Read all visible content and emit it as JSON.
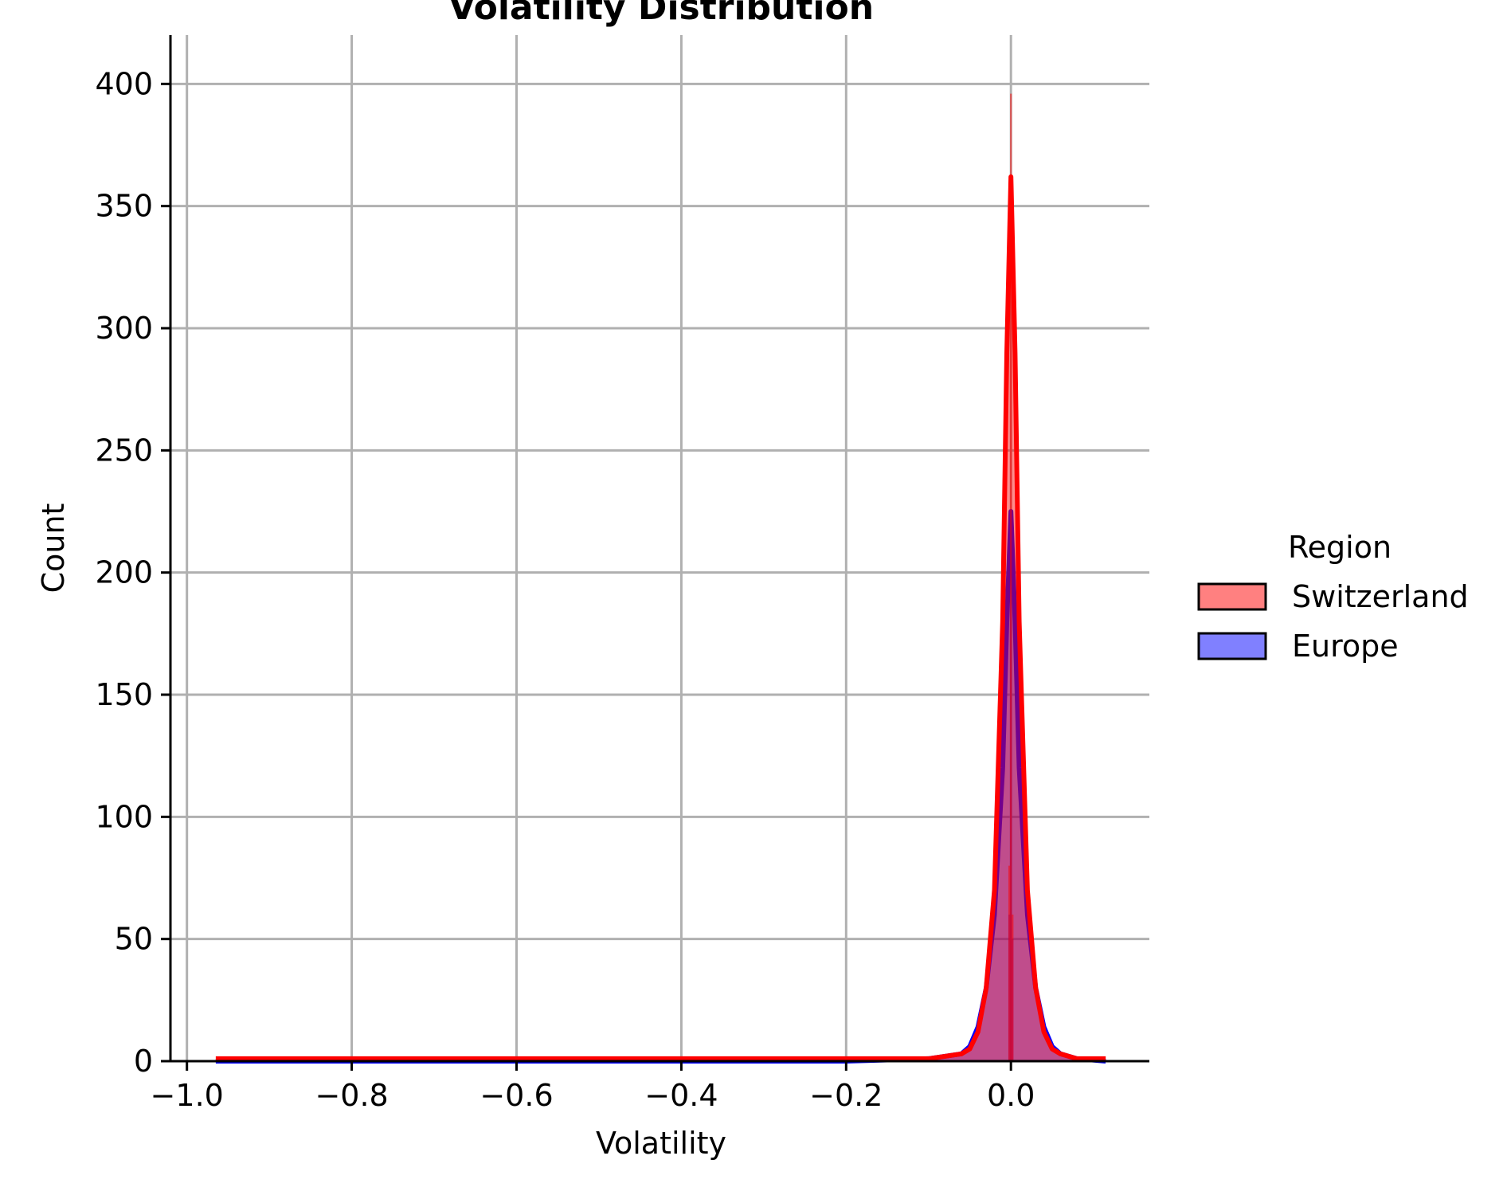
{
  "chart_data": {
    "type": "histogram",
    "title": "Volatility Distribution",
    "xlabel": "Volatility",
    "ylabel": "Count",
    "xlim": [
      -1.02,
      0.168
    ],
    "ylim": [
      0,
      420
    ],
    "xticks": [
      -1.0,
      -0.8,
      -0.6,
      -0.4,
      -0.2,
      0.0
    ],
    "xtick_labels": [
      "−1.0",
      "−0.8",
      "−0.6",
      "−0.4",
      "−0.2",
      "0.0"
    ],
    "yticks": [
      0,
      50,
      100,
      150,
      200,
      250,
      300,
      350,
      400
    ],
    "ytick_labels": [
      "0",
      "50",
      "100",
      "150",
      "200",
      "250",
      "300",
      "350",
      "400"
    ],
    "grid": true,
    "legend": {
      "title": "Region",
      "placement": "right",
      "entries": [
        {
          "name": "Switzerland",
          "color": "#ff8080"
        },
        {
          "name": "Europe",
          "color": "#8080ff"
        }
      ]
    },
    "series": [
      {
        "name": "Switzerland",
        "fill_color": "#ff0000",
        "line_color": "#ff0000",
        "histogram": {
          "x": [
            -0.002,
            0.0,
            0.002
          ],
          "values": [
            80,
            396,
            60
          ]
        },
        "kde": {
          "x": [
            -0.965,
            -0.6,
            -0.2,
            -0.1,
            -0.06,
            -0.05,
            -0.04,
            -0.03,
            -0.02,
            -0.01,
            -0.005,
            0.0,
            0.005,
            0.01,
            0.02,
            0.03,
            0.04,
            0.05,
            0.06,
            0.08,
            0.115
          ],
          "values": [
            1,
            1,
            1,
            1,
            3,
            5,
            12,
            30,
            70,
            180,
            290,
            362,
            290,
            180,
            70,
            30,
            12,
            5,
            3,
            1,
            1
          ]
        }
      },
      {
        "name": "Europe",
        "fill_color": "#0000ff",
        "line_color": "#0000ff",
        "histogram": {
          "x": [
            -0.002,
            0.0,
            0.002
          ],
          "values": [
            60,
            220,
            50
          ]
        },
        "kde": {
          "x": [
            -0.965,
            -0.6,
            -0.2,
            -0.1,
            -0.06,
            -0.05,
            -0.04,
            -0.03,
            -0.02,
            -0.01,
            -0.005,
            0.0,
            0.005,
            0.01,
            0.02,
            0.03,
            0.04,
            0.05,
            0.06,
            0.08,
            0.115
          ],
          "values": [
            0,
            0,
            0,
            1,
            3,
            6,
            14,
            30,
            60,
            120,
            180,
            225,
            180,
            120,
            60,
            30,
            14,
            6,
            3,
            1,
            0
          ]
        }
      }
    ]
  }
}
